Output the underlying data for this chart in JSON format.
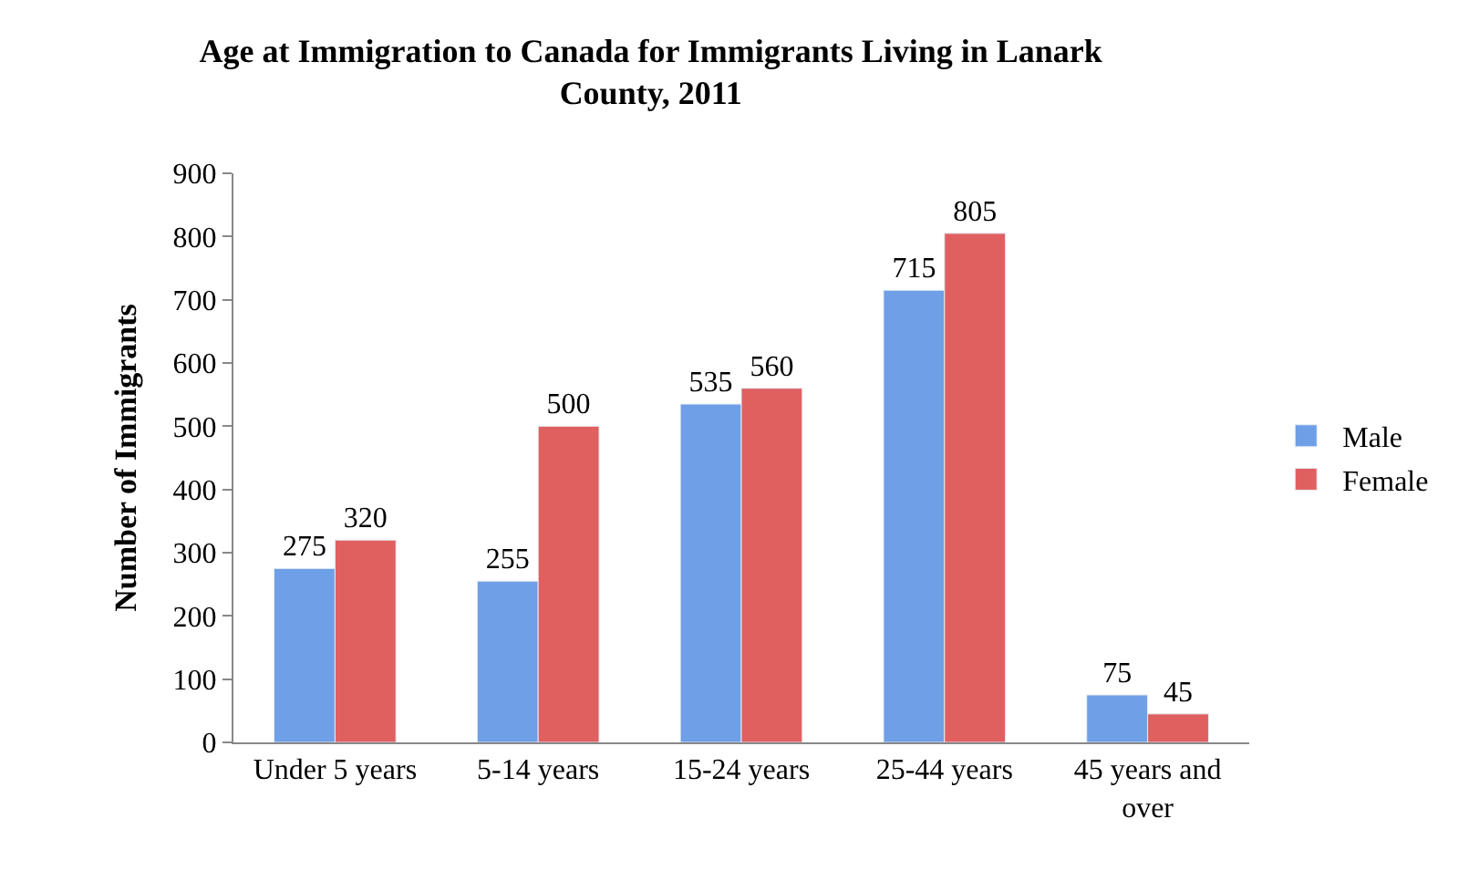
{
  "chart_data": {
    "type": "bar",
    "title": "Age at Immigration to Canada for Immigrants Living in Lanark County, 2011",
    "ylabel": "Number of Immigrants",
    "categories": [
      "Under 5 years",
      "5-14 years",
      "15-24 years",
      "25-44 years",
      "45 years and over"
    ],
    "series": [
      {
        "name": "Male",
        "color": "#6f9fe6",
        "values": [
          275,
          255,
          535,
          715,
          75
        ]
      },
      {
        "name": "Female",
        "color": "#e06060",
        "values": [
          320,
          500,
          560,
          805,
          45
        ]
      }
    ],
    "ylim": [
      0,
      900
    ],
    "yticks": [
      0,
      100,
      200,
      300,
      400,
      500,
      600,
      700,
      800,
      900
    ],
    "legend": "right",
    "data_labels": true
  }
}
